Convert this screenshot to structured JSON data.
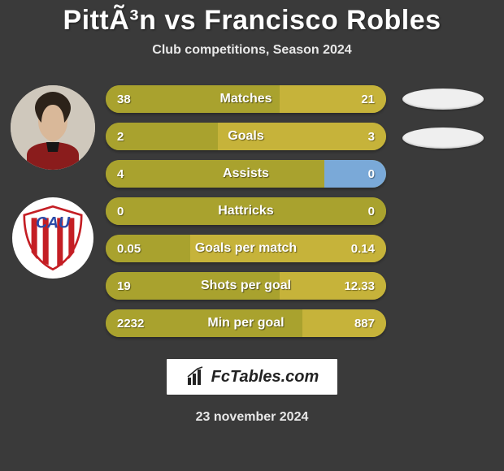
{
  "title": "PittÃ³n vs Francisco Robles",
  "subtitle": "Club competitions, Season 2024",
  "colors": {
    "background": "#3a3a3a",
    "bar_olive": "#a9a22e",
    "bar_gold": "#c6b33a",
    "bar_blue": "#7aa9d8",
    "text": "#ffffff",
    "ellipse": "#efefef"
  },
  "stats": [
    {
      "label": "Matches",
      "left_val": "38",
      "right_val": "21",
      "left_pct": 62,
      "left_color": "#a9a22e",
      "right_color": "#c6b33a"
    },
    {
      "label": "Goals",
      "left_val": "2",
      "right_val": "3",
      "left_pct": 40,
      "left_color": "#a9a22e",
      "right_color": "#c6b33a"
    },
    {
      "label": "Assists",
      "left_val": "4",
      "right_val": "0",
      "left_pct": 78,
      "left_color": "#a9a22e",
      "right_color": "#7aa9d8"
    },
    {
      "label": "Hattricks",
      "left_val": "0",
      "right_val": "0",
      "left_pct": 50,
      "left_color": "#a9a22e",
      "right_color": "#a9a22e"
    },
    {
      "label": "Goals per match",
      "left_val": "0.05",
      "right_val": "0.14",
      "left_pct": 30,
      "left_color": "#a9a22e",
      "right_color": "#c6b33a"
    },
    {
      "label": "Shots per goal",
      "left_val": "19",
      "right_val": "12.33",
      "left_pct": 62,
      "left_color": "#a9a22e",
      "right_color": "#c6b33a"
    },
    {
      "label": "Min per goal",
      "left_val": "2232",
      "right_val": "887",
      "left_pct": 70,
      "left_color": "#a9a22e",
      "right_color": "#c6b33a"
    }
  ],
  "footer": {
    "brand": "FcTables.com",
    "date": "23 november 2024"
  }
}
